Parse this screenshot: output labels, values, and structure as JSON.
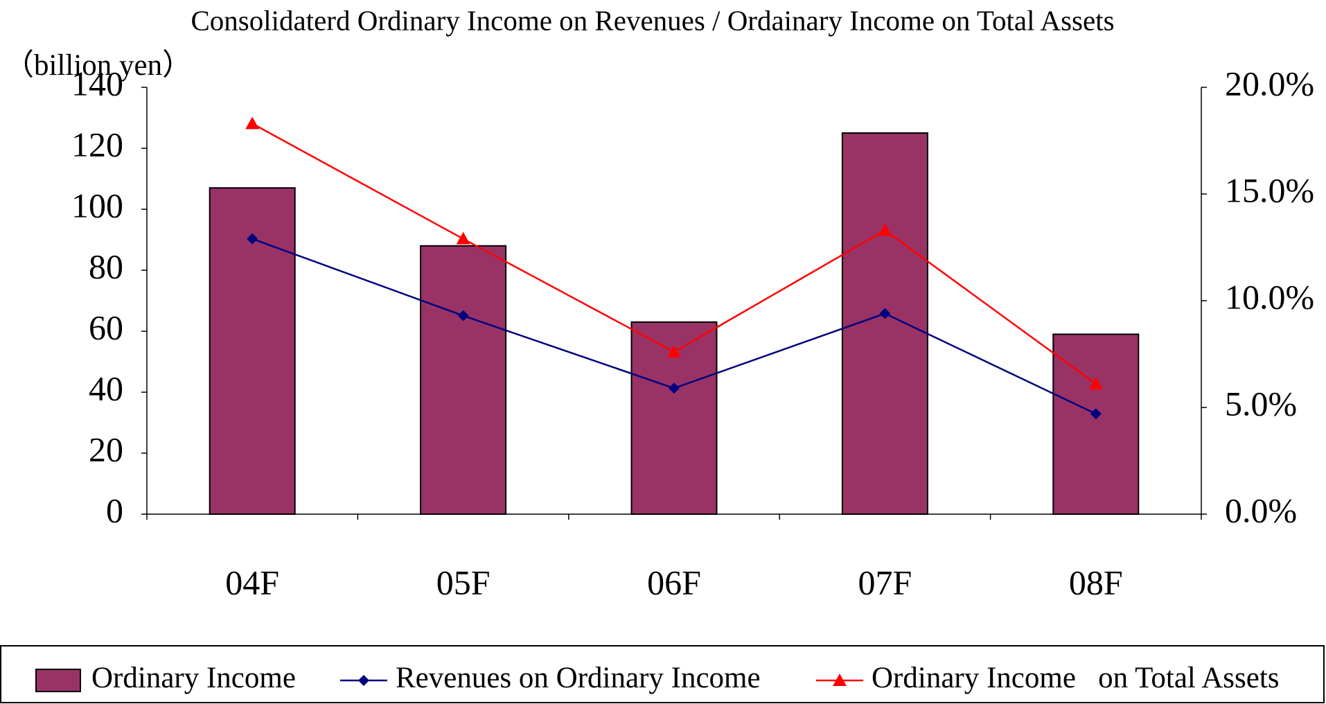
{
  "chart_data": {
    "type": "bar",
    "title": "Consolidaterd Ordinary Income on Revenues / Ordainary Income on Total Assets",
    "ylabel": "（billion yen）",
    "categories": [
      "04F",
      "05F",
      "06F",
      "07F",
      "08F"
    ],
    "series": [
      {
        "name": "Ordinary Income",
        "type": "bar",
        "color": "#993366",
        "values": [
          107,
          88,
          63,
          125,
          59
        ]
      },
      {
        "name": "Revenues on Ordinary Income",
        "type": "line",
        "marker": "diamond",
        "axis": "y2",
        "color": "#000080",
        "values": [
          12.9,
          9.3,
          5.9,
          9.4,
          4.7
        ]
      },
      {
        "name": "Ordinary Income   on Total Assets",
        "type": "line",
        "marker": "triangle",
        "axis": "y2",
        "color": "#ff0000",
        "values": [
          18.3,
          12.9,
          7.6,
          13.3,
          6.1
        ]
      }
    ],
    "ylim": [
      0,
      140
    ],
    "yticks": [
      0,
      20,
      40,
      60,
      80,
      100,
      120,
      140
    ],
    "y2lim": [
      0,
      20
    ],
    "y2ticks": [
      {
        "value": 0,
        "label": "0.0%"
      },
      {
        "value": 5,
        "label": "5.0%"
      },
      {
        "value": 10,
        "label": "10.0%"
      },
      {
        "value": 15,
        "label": "15.0%"
      },
      {
        "value": 20,
        "label": "20.0%"
      }
    ],
    "grid": false,
    "legend": "bottom"
  }
}
